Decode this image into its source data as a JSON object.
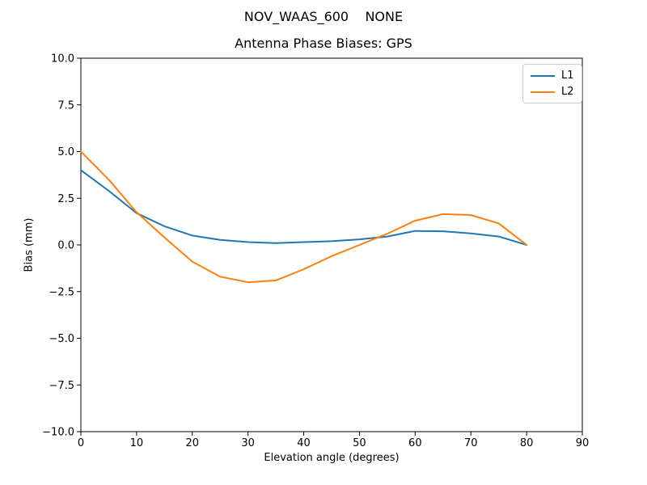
{
  "figure": {
    "suptitle": "NOV_WAAS_600    NONE",
    "background": "#ffffff",
    "text_color": "#000000"
  },
  "chart_data": {
    "type": "line",
    "suptitle": "NOV_WAAS_600    NONE",
    "title": "Antenna Phase Biases: GPS",
    "xlabel": "Elevation angle (degrees)",
    "ylabel": "Bias (mm)",
    "xlim": [
      0,
      90
    ],
    "ylim": [
      -10,
      10
    ],
    "grid": false,
    "xticks": [
      0,
      10,
      20,
      30,
      40,
      50,
      60,
      70,
      80,
      90
    ],
    "xtick_labels": [
      "0",
      "10",
      "20",
      "30",
      "40",
      "50",
      "60",
      "70",
      "80",
      "90"
    ],
    "yticks": [
      -10,
      -7.5,
      -5,
      -2.5,
      0,
      2.5,
      5,
      7.5,
      10
    ],
    "ytick_labels": [
      "−10.0",
      "−7.5",
      "−5.0",
      "−2.5",
      "0.0",
      "2.5",
      "5.0",
      "7.5",
      "10.0"
    ],
    "x": [
      0,
      5,
      10,
      15,
      20,
      25,
      30,
      35,
      40,
      45,
      50,
      55,
      60,
      65,
      70,
      75,
      80
    ],
    "series": [
      {
        "name": "L1",
        "color": "#1f77b4",
        "values": [
          4.0,
          2.9,
          1.7,
          1.0,
          0.5,
          0.27,
          0.15,
          0.1,
          0.15,
          0.2,
          0.3,
          0.45,
          0.75,
          0.73,
          0.62,
          0.45,
          0.0
        ]
      },
      {
        "name": "L2",
        "color": "#ff7f0e",
        "values": [
          5.0,
          3.5,
          1.75,
          0.4,
          -0.9,
          -1.7,
          -2.0,
          -1.9,
          -1.3,
          -0.6,
          0.0,
          0.6,
          1.3,
          1.65,
          1.6,
          1.15,
          0.0
        ]
      }
    ],
    "legend": {
      "position": "upper right",
      "entries": [
        {
          "label": "L1",
          "color": "#1f77b4"
        },
        {
          "label": "L2",
          "color": "#ff7f0e"
        }
      ]
    }
  }
}
